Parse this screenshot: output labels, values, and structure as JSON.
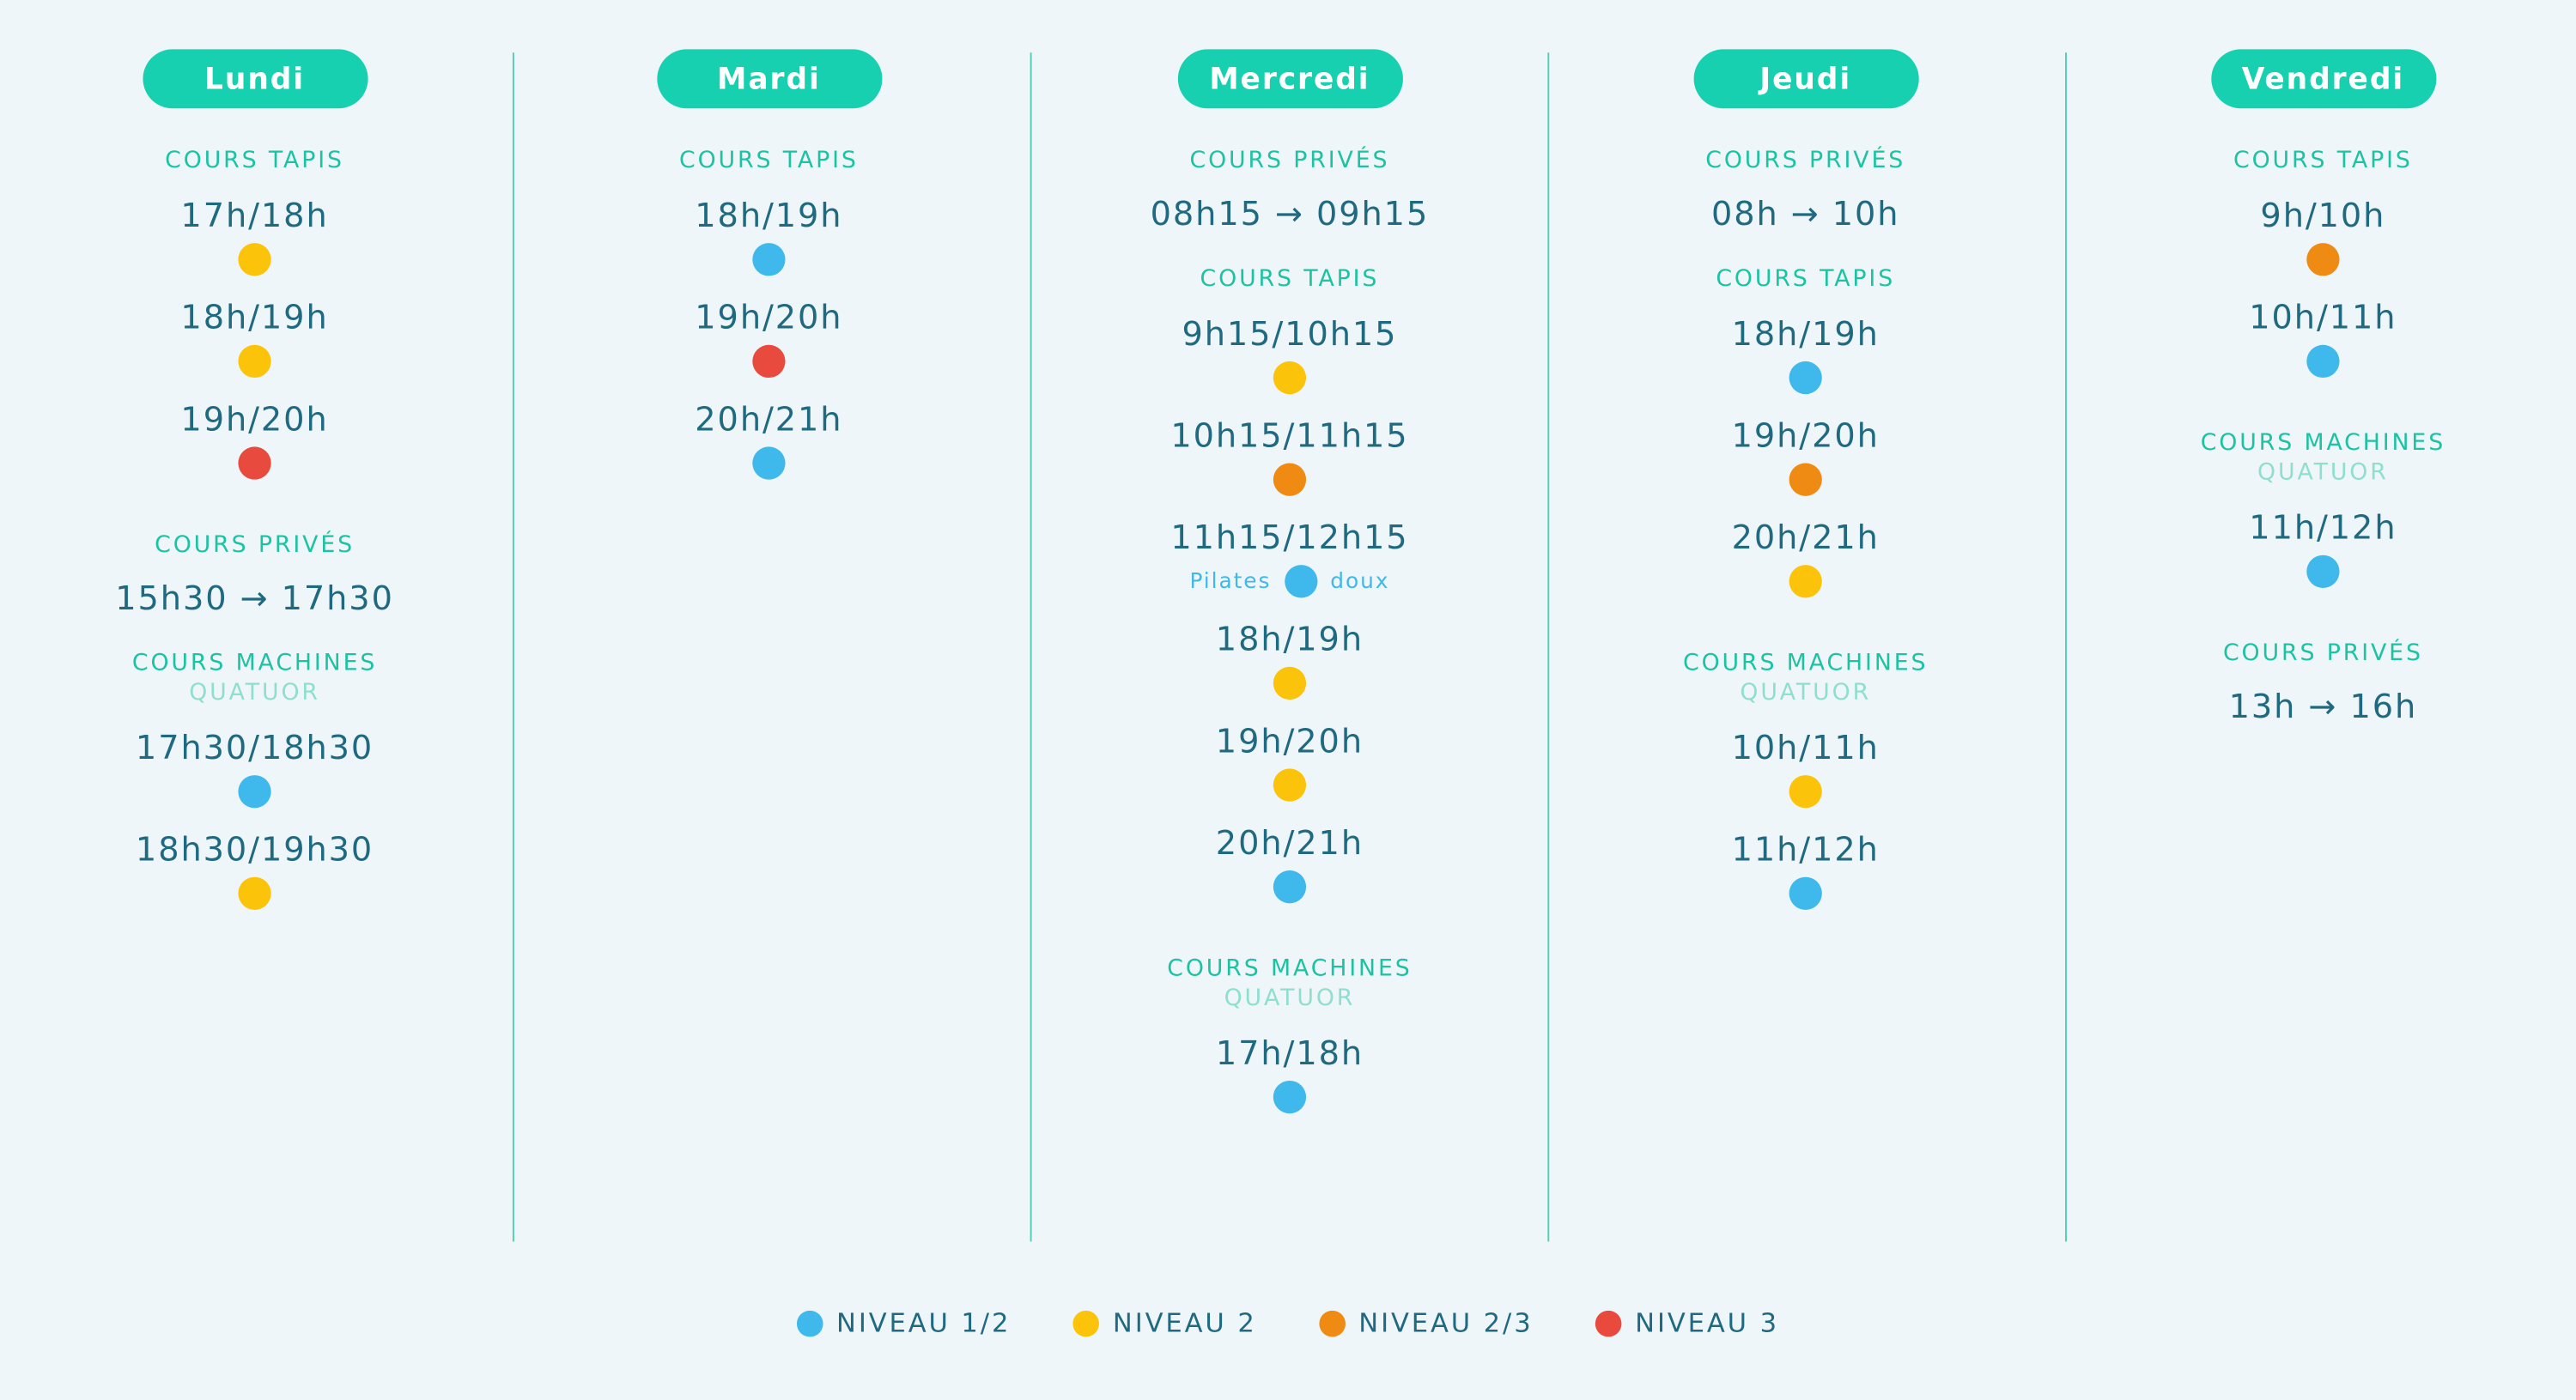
{
  "days": [
    {
      "name": "Lundi",
      "sections": [
        {
          "title": "COURS TAPIS",
          "slots": [
            {
              "time": "17h/18h",
              "color": "#fcc30b"
            },
            {
              "time": "18h/19h",
              "color": "#fcc30b"
            },
            {
              "time": "19h/20h",
              "color": "#e84a3e"
            }
          ]
        },
        {
          "title": "COURS PRIVÉS",
          "range": "15h30 → 17h30"
        },
        {
          "title": "COURS MACHINES",
          "subtitle": "QUATUOR",
          "slots": [
            {
              "time": "17h30/18h30",
              "color": "#3fb8ec"
            },
            {
              "time": "18h30/19h30",
              "color": "#fcc30b"
            }
          ]
        }
      ]
    },
    {
      "name": "Mardi",
      "sections": [
        {
          "title": "COURS TAPIS",
          "slots": [
            {
              "time": "18h/19h",
              "color": "#3fb8ec"
            },
            {
              "time": "19h/20h",
              "color": "#e84a3e"
            },
            {
              "time": "20h/21h",
              "color": "#3fb8ec"
            }
          ]
        }
      ]
    },
    {
      "name": "Mercredi",
      "sections": [
        {
          "title": "COURS PRIVÉS",
          "range": "08h15 → 09h15"
        },
        {
          "title": "COURS TAPIS",
          "slots": [
            {
              "time": "9h15/10h15",
              "color": "#fcc30b"
            },
            {
              "time": "10h15/11h15",
              "color": "#ef8a12"
            },
            {
              "time": "11h15/12h15",
              "color": "#3fb8ec",
              "notes": [
                "Pilates",
                "doux"
              ]
            },
            {
              "time": "18h/19h",
              "color": "#fcc30b"
            },
            {
              "time": "19h/20h",
              "color": "#fcc30b"
            },
            {
              "time": "20h/21h",
              "color": "#3fb8ec"
            }
          ]
        },
        {
          "title": "COURS MACHINES",
          "subtitle": "QUATUOR",
          "slots": [
            {
              "time": "17h/18h",
              "color": "#3fb8ec"
            }
          ]
        }
      ]
    },
    {
      "name": "Jeudi",
      "sections": [
        {
          "title": "COURS PRIVÉS",
          "range": "08h → 10h"
        },
        {
          "title": "COURS TAPIS",
          "slots": [
            {
              "time": "18h/19h",
              "color": "#3fb8ec"
            },
            {
              "time": "19h/20h",
              "color": "#ef8a12"
            },
            {
              "time": "20h/21h",
              "color": "#fcc30b"
            }
          ]
        },
        {
          "title": "COURS MACHINES",
          "subtitle": "QUATUOR",
          "slots": [
            {
              "time": "10h/11h",
              "color": "#fcc30b"
            },
            {
              "time": "11h/12h",
              "color": "#3fb8ec"
            }
          ]
        }
      ]
    },
    {
      "name": "Vendredi",
      "sections": [
        {
          "title": "COURS TAPIS",
          "slots": [
            {
              "time": "9h/10h",
              "color": "#ef8a12"
            },
            {
              "time": "10h/11h",
              "color": "#3fb8ec"
            }
          ]
        },
        {
          "title": "COURS MACHINES",
          "subtitle": "QUATUOR",
          "slots": [
            {
              "time": "11h/12h",
              "color": "#3fb8ec"
            }
          ]
        },
        {
          "title": "COURS PRIVÉS",
          "range": "13h → 16h"
        }
      ]
    }
  ],
  "legend": [
    {
      "name": "NIVEAU 1/2",
      "color": "#3fb8ec"
    },
    {
      "name": "NIVEAU 2",
      "color": "#fcc30b"
    },
    {
      "name": "NIVEAU 2/3",
      "color": "#ef8a12"
    },
    {
      "name": "NIVEAU 3",
      "color": "#e84a3e"
    }
  ]
}
